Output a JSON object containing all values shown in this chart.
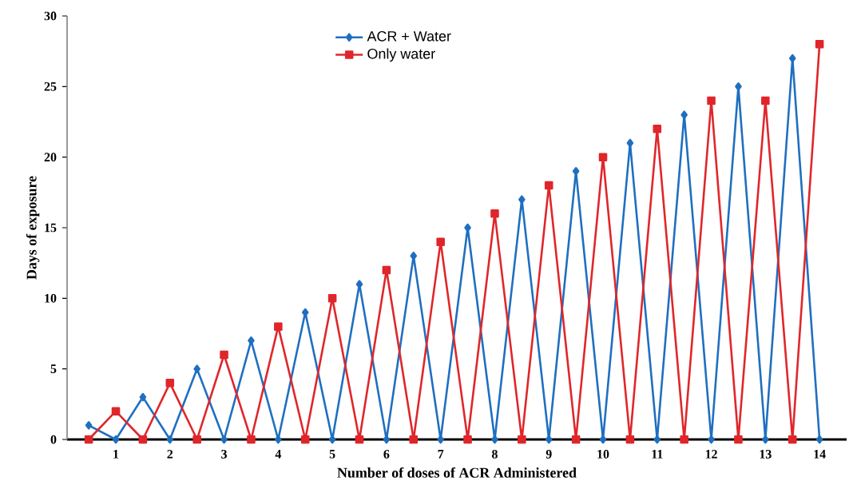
{
  "chart_data": {
    "type": "line",
    "xlabel": "Number of doses of ACR Administered",
    "ylabel": "Days of exposure",
    "x": [
      0.5,
      1,
      1.5,
      2,
      2.5,
      3,
      3.5,
      4,
      4.5,
      5,
      5.5,
      6,
      6.5,
      7,
      7.5,
      8,
      8.5,
      9,
      9.5,
      10,
      10.5,
      11,
      11.5,
      12,
      12.5,
      13,
      13.5,
      14
    ],
    "xlim": [
      0.1,
      14.5
    ],
    "xticks": [
      1,
      2,
      3,
      4,
      5,
      6,
      7,
      8,
      9,
      10,
      11,
      12,
      13,
      14
    ],
    "ylim": [
      0,
      30
    ],
    "yticks": [
      0,
      5,
      10,
      15,
      20,
      25,
      30
    ],
    "legend": "top",
    "grid": false,
    "series": [
      {
        "name": "ACR + Water",
        "color": "#1f6fc0",
        "marker": "diamond",
        "values": [
          1,
          0,
          3,
          0,
          5,
          0,
          7,
          0,
          9,
          0,
          11,
          0,
          13,
          0,
          15,
          0,
          17,
          0,
          19,
          0,
          21,
          0,
          23,
          0,
          25,
          0,
          27,
          0
        ]
      },
      {
        "name": "Only water",
        "color": "#e0262a",
        "marker": "square",
        "values": [
          0,
          2,
          0,
          4,
          0,
          6,
          0,
          8,
          0,
          10,
          0,
          12,
          0,
          14,
          0,
          16,
          0,
          18,
          0,
          20,
          0,
          22,
          0,
          24,
          0,
          24,
          0,
          28
        ]
      }
    ]
  }
}
